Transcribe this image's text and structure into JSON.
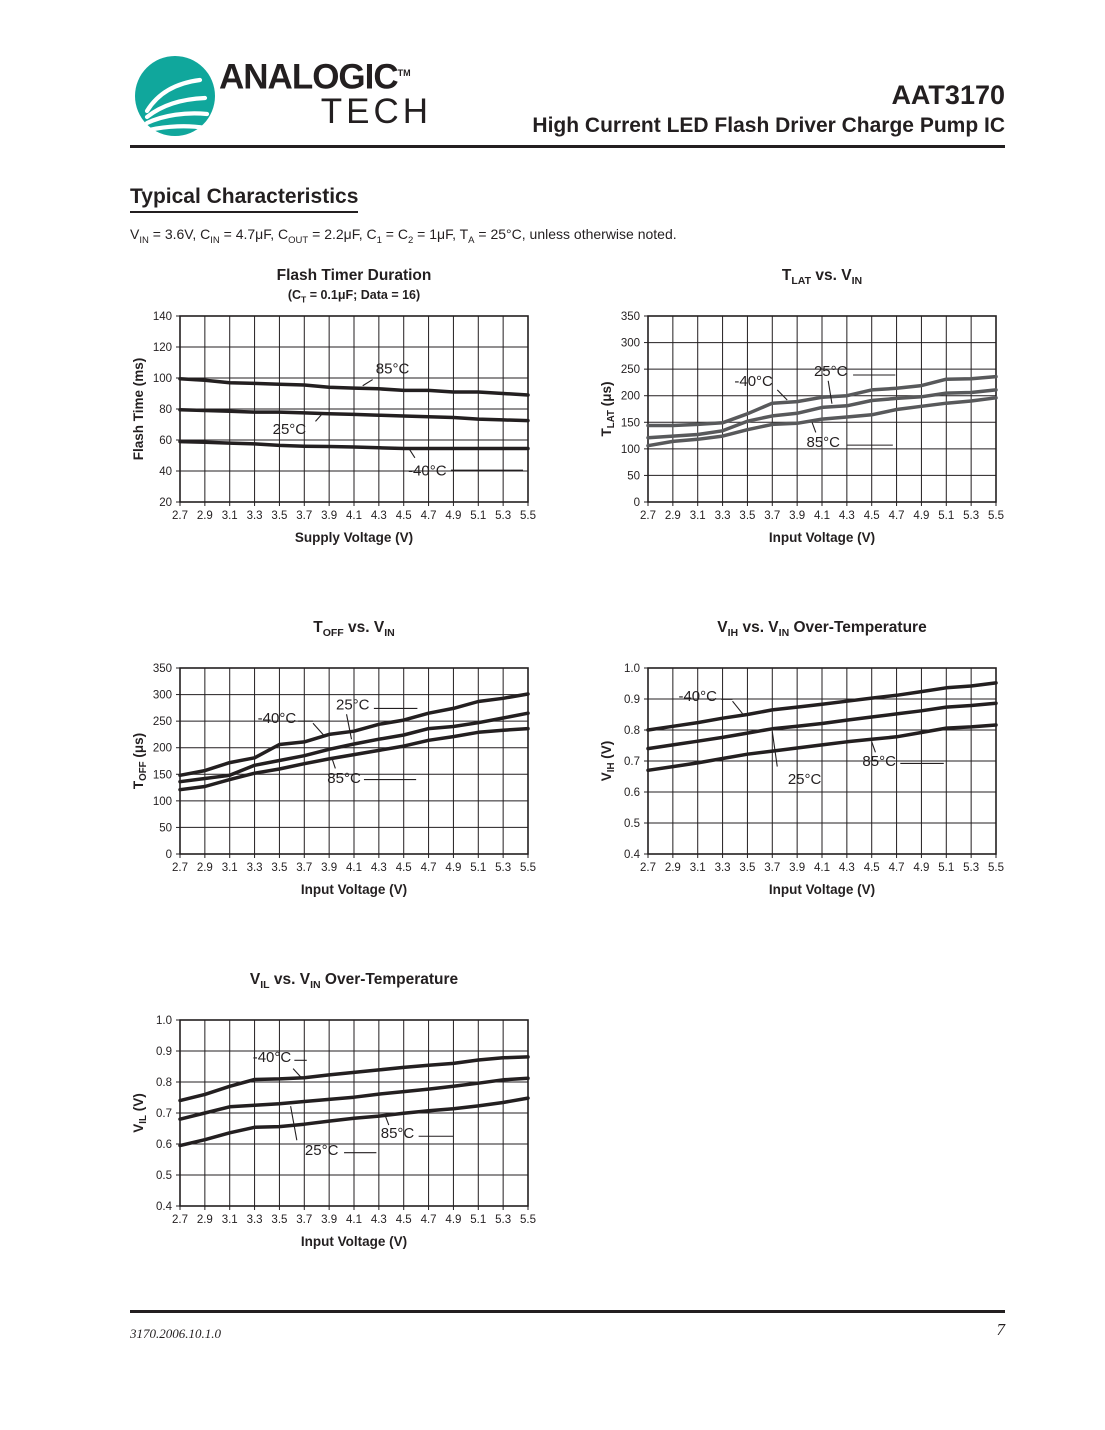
{
  "header": {
    "logo_line1": "ANALOGIC",
    "logo_tm": "TM",
    "logo_line2": "TECH",
    "part_number": "AAT3170",
    "doc_title": "High Current LED Flash Driver Charge Pump IC"
  },
  "section": {
    "title": "Typical Characteristics",
    "conditions": "V_{IN} = 3.6V, C_{IN} = 4.7μF, C_{OUT} = 2.2μF, C_{1} = C_{2} = 1μF, T_{A} = 25°C, unless otherwise noted."
  },
  "footer": {
    "doc_id": "3170.2006.10.1.0",
    "page_number": "7"
  },
  "colors": {
    "brand_teal": "#10a79c",
    "ink": "#231f20",
    "series_gray": "#58595b"
  },
  "chart_data": [
    {
      "type": "line",
      "title": "Flash Timer Duration",
      "subtitle": "(C_{T} = 0.1μF; Data = 16)",
      "xlabel": "Supply Voltage (V)",
      "ylabel": "Flash Time (ms)",
      "x": [
        2.7,
        2.9,
        3.1,
        3.3,
        3.5,
        3.7,
        3.9,
        4.1,
        4.3,
        4.5,
        4.7,
        4.9,
        5.1,
        5.3,
        5.5
      ],
      "xticklabels": [
        "2.7",
        "2.9",
        "3.1",
        "3.3",
        "3.5",
        "3.7",
        "3.9",
        "4.1",
        "4.3",
        "4.5",
        "4.7",
        "4.9",
        "5.1",
        "5.3",
        "5.5"
      ],
      "ylim": [
        20,
        140
      ],
      "yticks": [
        20,
        40,
        60,
        80,
        100,
        120,
        140
      ],
      "yticklabels": [
        "20",
        "40",
        "60",
        "80",
        "100",
        "120",
        "140"
      ],
      "color": "#231f20",
      "series": [
        {
          "name": "85°C",
          "values": [
            99.5,
            98.5,
            97,
            96.5,
            96,
            95.5,
            94,
            93.5,
            93,
            92,
            92,
            91,
            91,
            90,
            89
          ]
        },
        {
          "name": "25°C",
          "values": [
            79.5,
            79,
            78.5,
            78,
            78,
            77.5,
            77,
            76.5,
            76,
            75.5,
            75,
            74.5,
            73.5,
            73,
            72.5
          ]
        },
        {
          "name": "-40°C",
          "values": [
            59,
            58.5,
            58,
            57.5,
            56.5,
            56,
            55.8,
            55.5,
            55,
            54.5,
            54.5,
            54.5,
            54.5,
            54.5,
            54.5
          ]
        }
      ],
      "annotations": [
        {
          "label": "85°C",
          "x": 4.41,
          "y": 106.5,
          "leader": [
            4.25,
            99,
            4.17,
            95
          ],
          "rule": null
        },
        {
          "label": "25°C",
          "x": 3.58,
          "y": 67.5,
          "leader": [
            3.79,
            72,
            3.85,
            77.4
          ],
          "rule": null
        },
        {
          "label": "-40°C",
          "x": 4.69,
          "y": 40.5,
          "leader": [
            4.59,
            48.5,
            4.54,
            54.7
          ],
          "rule": [
            4.88,
            5.46,
            40.5
          ]
        }
      ]
    },
    {
      "type": "line",
      "title": "T_{LAT} vs. V_{IN}",
      "xlabel": "Input Voltage (V)",
      "ylabel": "T_{LAT} (μs)",
      "x": [
        2.7,
        2.9,
        3.1,
        3.3,
        3.5,
        3.7,
        3.9,
        4.1,
        4.3,
        4.5,
        4.7,
        4.9,
        5.1,
        5.3,
        5.5
      ],
      "xticklabels": [
        "2.7",
        "2.9",
        "3.1",
        "3.3",
        "3.5",
        "3.7",
        "3.9",
        "4.1",
        "4.3",
        "4.5",
        "4.7",
        "4.9",
        "5.1",
        "5.3",
        "5.5"
      ],
      "ylim": [
        0,
        350
      ],
      "yticks": [
        0,
        50,
        100,
        150,
        200,
        250,
        300,
        350
      ],
      "yticklabels": [
        "0",
        "50",
        "100",
        "150",
        "200",
        "250",
        "300",
        "350"
      ],
      "color": "#58595b",
      "series": [
        {
          "name": "-40°C",
          "values": [
            144,
            144,
            146,
            149,
            166,
            186,
            189,
            197,
            200,
            211,
            214,
            219,
            231,
            232,
            236
          ]
        },
        {
          "name": "25°C",
          "values": [
            121,
            124,
            127,
            134,
            152,
            162,
            167,
            178,
            181,
            191,
            195,
            198,
            205,
            206,
            211
          ]
        },
        {
          "name": "85°C",
          "values": [
            106,
            114,
            118,
            124,
            136,
            146,
            148,
            156,
            160,
            164,
            174,
            180,
            186,
            190,
            196
          ]
        }
      ],
      "annotations": [
        {
          "label": "-40°C",
          "x": 3.55,
          "y": 229,
          "leader": [
            3.74,
            211,
            3.82,
            192
          ],
          "rule": null
        },
        {
          "label": "25°C",
          "x": 4.17,
          "y": 247,
          "leader": [
            4.15,
            228,
            4.18,
            185
          ],
          "rule": [
            4.35,
            4.69,
            239
          ]
        },
        {
          "label": "85°C",
          "x": 4.11,
          "y": 114,
          "leader": [
            4.05,
            131,
            4.02,
            150
          ],
          "rule": [
            4.3,
            4.67,
            107
          ]
        }
      ]
    },
    {
      "type": "line",
      "title": "T_{OFF} vs. V_{IN}",
      "xlabel": "Input Voltage (V)",
      "ylabel": "T_{OFF} (μs)",
      "x": [
        2.7,
        2.9,
        3.1,
        3.3,
        3.5,
        3.7,
        3.9,
        4.1,
        4.3,
        4.5,
        4.7,
        4.9,
        5.1,
        5.3,
        5.5
      ],
      "xticklabels": [
        "2.7",
        "2.9",
        "3.1",
        "3.3",
        "3.5",
        "3.7",
        "3.9",
        "4.1",
        "4.3",
        "4.5",
        "4.7",
        "4.9",
        "5.1",
        "5.3",
        "5.5"
      ],
      "ylim": [
        0,
        350
      ],
      "yticks": [
        0,
        50,
        100,
        150,
        200,
        250,
        300,
        350
      ],
      "yticklabels": [
        "0",
        "50",
        "100",
        "150",
        "200",
        "250",
        "300",
        "350"
      ],
      "color": "#231f20",
      "series": [
        {
          "name": "-40°C",
          "values": [
            148,
            157,
            172,
            181,
            206,
            211,
            225,
            231,
            244,
            252,
            265,
            274,
            287,
            293,
            301
          ]
        },
        {
          "name": "25°C",
          "values": [
            136,
            142,
            148,
            167,
            176,
            185,
            197,
            207,
            216,
            224,
            236,
            240,
            247,
            256,
            265
          ]
        },
        {
          "name": "85°C",
          "values": [
            121,
            127,
            140,
            152,
            160,
            170,
            179,
            187,
            195,
            203,
            214,
            221,
            229,
            233,
            236
          ]
        }
      ],
      "annotations": [
        {
          "label": "-40°C",
          "x": 3.48,
          "y": 257,
          "leader": [
            3.77,
            246,
            3.87,
            220
          ],
          "rule": [
            3.65,
            3.77,
            250
          ]
        },
        {
          "label": "25°C",
          "x": 4.09,
          "y": 282,
          "leader": [
            4.04,
            263,
            4.08,
            216
          ],
          "rule": [
            4.26,
            4.61,
            274
          ]
        },
        {
          "label": "85°C",
          "x": 4.02,
          "y": 144,
          "leader": [
            3.95,
            161,
            3.92,
            182
          ],
          "rule": [
            4.18,
            4.6,
            140
          ]
        }
      ]
    },
    {
      "type": "line",
      "title": "V_{IH} vs. V_{IN} Over-Temperature",
      "xlabel": "Input Voltage (V)",
      "ylabel": "V_{IH} (V)",
      "x": [
        2.7,
        2.9,
        3.1,
        3.3,
        3.5,
        3.7,
        3.9,
        4.1,
        4.3,
        4.5,
        4.7,
        4.9,
        5.1,
        5.3,
        5.5
      ],
      "xticklabels": [
        "2.7",
        "2.9",
        "3.1",
        "3.3",
        "3.5",
        "3.7",
        "3.9",
        "4.1",
        "4.3",
        "4.5",
        "4.7",
        "4.9",
        "5.1",
        "5.3",
        "5.5"
      ],
      "ylim": [
        0.4,
        1.0
      ],
      "yticks": [
        0.4,
        0.5,
        0.6,
        0.7,
        0.8,
        0.9,
        1.0
      ],
      "yticklabels": [
        "0.4",
        "0.5",
        "0.6",
        "0.7",
        "0.8",
        "0.9",
        "1.0"
      ],
      "color": "#231f20",
      "series": [
        {
          "name": "-40°C",
          "values": [
            0.8,
            0.812,
            0.824,
            0.838,
            0.85,
            0.865,
            0.874,
            0.883,
            0.893,
            0.903,
            0.912,
            0.924,
            0.936,
            0.942,
            0.952
          ]
        },
        {
          "name": "25°C",
          "values": [
            0.74,
            0.752,
            0.764,
            0.776,
            0.79,
            0.804,
            0.812,
            0.821,
            0.832,
            0.842,
            0.852,
            0.862,
            0.874,
            0.879,
            0.886
          ]
        },
        {
          "name": "85°C",
          "values": [
            0.67,
            0.682,
            0.694,
            0.708,
            0.722,
            0.732,
            0.742,
            0.752,
            0.762,
            0.77,
            0.778,
            0.792,
            0.806,
            0.81,
            0.816
          ]
        }
      ],
      "annotations": [
        {
          "label": "-40°C",
          "x": 3.1,
          "y": 0.912,
          "leader": [
            3.38,
            0.893,
            3.46,
            0.853
          ],
          "rule": [
            3.29,
            3.38,
            0.899
          ]
        },
        {
          "label": "25°C",
          "x": 3.96,
          "y": 0.643,
          "leader": [
            3.74,
            0.682,
            3.7,
            0.795
          ],
          "rule": null
        },
        {
          "label": "85°C",
          "x": 4.56,
          "y": 0.702,
          "leader": [
            4.53,
            0.728,
            4.5,
            0.762
          ],
          "rule": [
            4.73,
            5.08,
            0.692
          ]
        }
      ]
    },
    {
      "type": "line",
      "title": "V_{IL} vs. V_{IN} Over-Temperature",
      "xlabel": "Input Voltage (V)",
      "ylabel": "V_{IL} (V)",
      "x": [
        2.7,
        2.9,
        3.1,
        3.3,
        3.5,
        3.7,
        3.9,
        4.1,
        4.3,
        4.5,
        4.7,
        4.9,
        5.1,
        5.3,
        5.5
      ],
      "xticklabels": [
        "2.7",
        "2.9",
        "3.1",
        "3.3",
        "3.5",
        "3.7",
        "3.9",
        "4.1",
        "4.3",
        "4.5",
        "4.7",
        "4.9",
        "5.1",
        "5.3",
        "5.5"
      ],
      "ylim": [
        0.4,
        1.0
      ],
      "yticks": [
        0.4,
        0.5,
        0.6,
        0.7,
        0.8,
        0.9,
        1.0
      ],
      "yticklabels": [
        "0.4",
        "0.5",
        "0.6",
        "0.7",
        "0.8",
        "0.9",
        "1.0"
      ],
      "color": "#231f20",
      "series": [
        {
          "name": "-40°C",
          "values": [
            0.74,
            0.76,
            0.786,
            0.808,
            0.81,
            0.814,
            0.823,
            0.831,
            0.839,
            0.847,
            0.854,
            0.86,
            0.871,
            0.878,
            0.881
          ]
        },
        {
          "name": "25°C",
          "values": [
            0.68,
            0.7,
            0.72,
            0.725,
            0.73,
            0.737,
            0.744,
            0.751,
            0.761,
            0.769,
            0.777,
            0.786,
            0.796,
            0.807,
            0.812
          ]
        },
        {
          "name": "85°C",
          "values": [
            0.595,
            0.614,
            0.636,
            0.654,
            0.656,
            0.664,
            0.674,
            0.683,
            0.69,
            0.699,
            0.707,
            0.714,
            0.723,
            0.734,
            0.748
          ]
        }
      ],
      "annotations": [
        {
          "label": "-40°C",
          "x": 3.44,
          "y": 0.883,
          "leader": [
            3.61,
            0.843,
            3.67,
            0.817
          ],
          "rule": [
            3.62,
            3.72,
            0.87
          ]
        },
        {
          "label": "25°C",
          "x": 3.84,
          "y": 0.582,
          "leader": [
            3.64,
            0.612,
            3.59,
            0.722
          ],
          "rule": [
            4.02,
            4.28,
            0.572
          ]
        },
        {
          "label": "85°C",
          "x": 4.45,
          "y": 0.637,
          "leader": [
            4.38,
            0.661,
            4.35,
            0.693
          ],
          "rule": [
            4.62,
            4.9,
            0.625
          ]
        }
      ]
    }
  ]
}
